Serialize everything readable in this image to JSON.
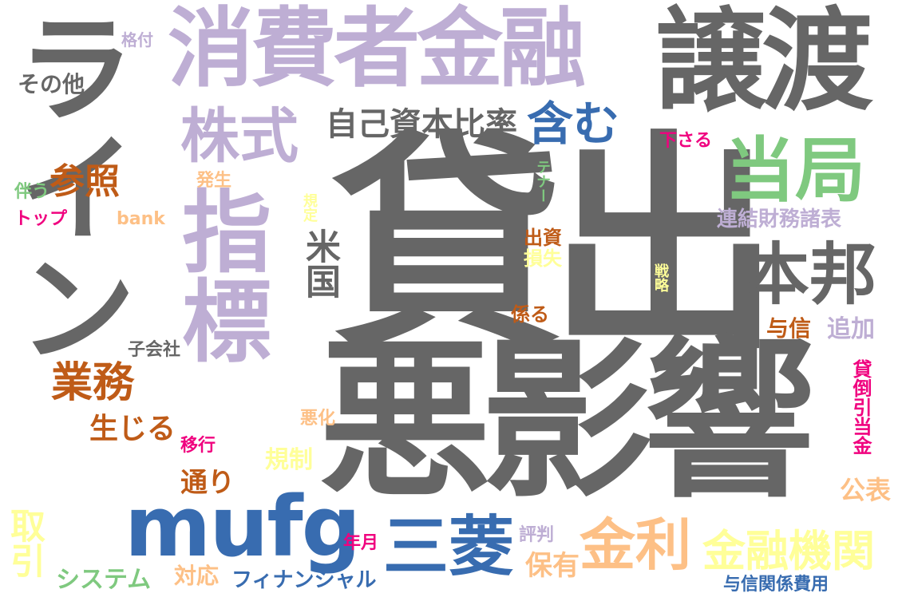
{
  "palette": {
    "gray": "#666666",
    "lavender": "#beaed4",
    "green": "#7fc97f",
    "orange": "#bf5b17",
    "peach": "#fdc086",
    "yellow": "#ffff99",
    "blue": "#386cb0",
    "magenta": "#f0027f"
  },
  "words": [
    {
      "text": "貸出",
      "color": "gray"
    },
    {
      "text": "悪影響",
      "color": "gray"
    },
    {
      "text": "ライン",
      "color": "gray"
    },
    {
      "text": "消費者金融",
      "color": "lavender"
    },
    {
      "text": "譲渡",
      "color": "gray"
    },
    {
      "text": "指標",
      "color": "lavender"
    },
    {
      "text": "mufg",
      "color": "blue"
    },
    {
      "text": "金利",
      "color": "peach"
    },
    {
      "text": "三菱",
      "color": "blue"
    },
    {
      "text": "当局",
      "color": "green"
    },
    {
      "text": "本邦",
      "color": "gray"
    },
    {
      "text": "株式",
      "color": "lavender"
    },
    {
      "text": "含む",
      "color": "blue"
    },
    {
      "text": "金融機関",
      "color": "yellow"
    },
    {
      "text": "自己資本比率",
      "color": "gray"
    },
    {
      "text": "米国",
      "color": "gray"
    },
    {
      "text": "業務",
      "color": "orange"
    },
    {
      "text": "参照",
      "color": "orange"
    },
    {
      "text": "取引",
      "color": "yellow"
    },
    {
      "text": "連結財務諸表",
      "color": "lavender"
    },
    {
      "text": "生じる",
      "color": "orange"
    },
    {
      "text": "保有",
      "color": "peach"
    },
    {
      "text": "追加",
      "color": "lavender"
    },
    {
      "text": "システム",
      "color": "green"
    },
    {
      "text": "フィナンシャル",
      "color": "blue"
    },
    {
      "text": "与信関係費用",
      "color": "blue"
    },
    {
      "text": "貸倒引当金",
      "color": "magenta"
    },
    {
      "text": "通り",
      "color": "orange"
    },
    {
      "text": "規制",
      "color": "yellow"
    },
    {
      "text": "公表",
      "color": "peach"
    },
    {
      "text": "与信",
      "color": "orange"
    },
    {
      "text": "対応",
      "color": "peach"
    },
    {
      "text": "その他",
      "color": "gray"
    },
    {
      "text": "下さる",
      "color": "magenta"
    },
    {
      "text": "出資",
      "color": "orange"
    },
    {
      "text": "損失",
      "color": "yellow"
    },
    {
      "text": "係る",
      "color": "orange"
    },
    {
      "text": "年月",
      "color": "magenta"
    },
    {
      "text": "評判",
      "color": "lavender"
    },
    {
      "text": "悪化",
      "color": "peach"
    },
    {
      "text": "移行",
      "color": "magenta"
    },
    {
      "text": "子会社",
      "color": "gray"
    },
    {
      "text": "発生",
      "color": "peach"
    },
    {
      "text": "bank",
      "color": "peach"
    },
    {
      "text": "伴う",
      "color": "green"
    },
    {
      "text": "トップ",
      "color": "magenta"
    },
    {
      "text": "格付",
      "color": "lavender"
    },
    {
      "text": "規定",
      "color": "yellow"
    },
    {
      "text": "テナー",
      "color": "green"
    },
    {
      "text": "戦略",
      "color": "yellow"
    }
  ]
}
